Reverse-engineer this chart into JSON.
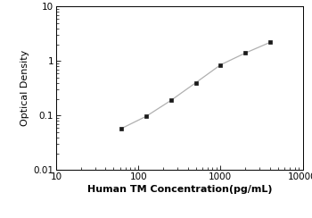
{
  "x_data": [
    62.5,
    125,
    250,
    500,
    1000,
    2000,
    4000
  ],
  "y_data": [
    0.058,
    0.097,
    0.19,
    0.4,
    0.85,
    1.4,
    2.2
  ],
  "xlabel": "Human TM Concentration(pg/mL)",
  "ylabel": "Optical Density",
  "xlim": [
    10,
    10000
  ],
  "ylim": [
    0.01,
    10
  ],
  "xticks": [
    10,
    100,
    1000,
    10000
  ],
  "yticks": [
    0.01,
    0.1,
    1,
    10
  ],
  "line_color": "#b0b0b0",
  "marker_color": "#1a1a1a",
  "marker_style": "s",
  "marker_size": 3.5,
  "line_width": 0.9,
  "background_color": "#ffffff",
  "xlabel_fontsize": 8,
  "ylabel_fontsize": 8,
  "tick_fontsize": 7.5
}
